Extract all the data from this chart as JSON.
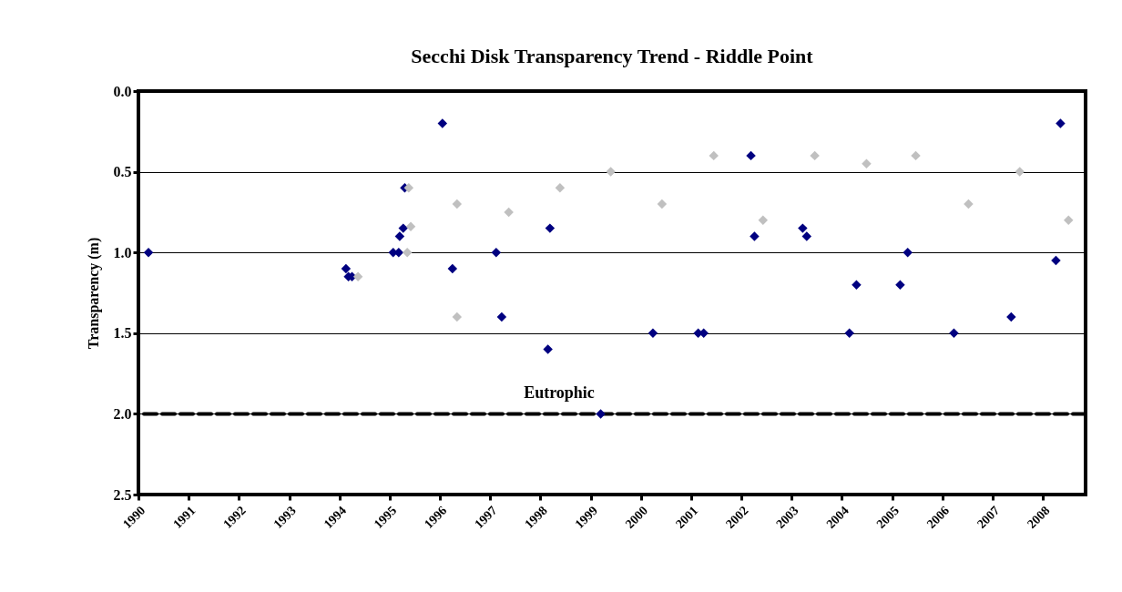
{
  "chart_data": {
    "type": "scatter",
    "title": "Secchi Disk Transparency Trend - Riddle Point",
    "ylabel": "Transparency (m)",
    "xlim": [
      1990,
      2008.85
    ],
    "xticks": [
      1990,
      1991,
      1992,
      1993,
      1994,
      1995,
      1996,
      1997,
      1998,
      1999,
      2000,
      2001,
      2002,
      2003,
      2004,
      2005,
      2006,
      2007,
      2008
    ],
    "ylim": [
      2.5,
      0
    ],
    "yticks": [
      {
        "value": 0,
        "label": "0.0"
      },
      {
        "value": 0.5,
        "label": "0.5"
      },
      {
        "value": 1,
        "label": "1.0"
      },
      {
        "value": 1.5,
        "label": "1.5"
      },
      {
        "value": 2,
        "label": "2.0"
      },
      {
        "value": 2.5,
        "label": "2.5"
      }
    ],
    "grid": "y",
    "marker": "diamond",
    "ref_lines": [
      {
        "axis": "y",
        "value": 2.0,
        "label": "Eutrophic",
        "color": "#000000",
        "line_style": "dashed"
      }
    ],
    "series": [
      {
        "color": "#000080",
        "x": [
          1990.2,
          1994.13,
          1994.18,
          1994.25,
          1995.07,
          1995.18,
          1995.2,
          1995.27,
          1995.3,
          1996.05,
          1996.25,
          1997.12,
          1997.23,
          1998.15,
          1998.19,
          1999.2,
          2000.24,
          2001.14,
          2001.25,
          2002.19,
          2002.26,
          2003.22,
          2003.3,
          2004.15,
          2004.29,
          2005.16,
          2005.31,
          2006.23,
          2007.37,
          2008.26,
          2008.35
        ],
        "values": [
          1.0,
          1.1,
          1.15,
          1.15,
          1.0,
          1.0,
          0.9,
          0.85,
          0.6,
          0.2,
          1.1,
          1.0,
          1.4,
          1.6,
          0.85,
          2.0,
          1.5,
          1.5,
          1.5,
          0.4,
          0.9,
          0.85,
          0.9,
          1.5,
          1.2,
          1.2,
          1.0,
          1.5,
          1.4,
          1.05,
          0.2
        ]
      },
      {
        "color": "#c0c0c0",
        "x": [
          1994.37,
          1995.35,
          1995.42,
          1995.38,
          1996.34,
          1996.34,
          1997.37,
          1998.39,
          1999.4,
          2000.42,
          2001.45,
          2002.43,
          2003.46,
          2004.49,
          2005.47,
          2006.52,
          2007.54,
          2008.51
        ],
        "values": [
          1.15,
          1.0,
          0.84,
          0.6,
          0.7,
          1.4,
          0.75,
          0.6,
          0.5,
          0.7,
          0.4,
          0.8,
          0.4,
          0.45,
          0.4,
          0.7,
          0.5,
          0.8
        ]
      }
    ]
  }
}
